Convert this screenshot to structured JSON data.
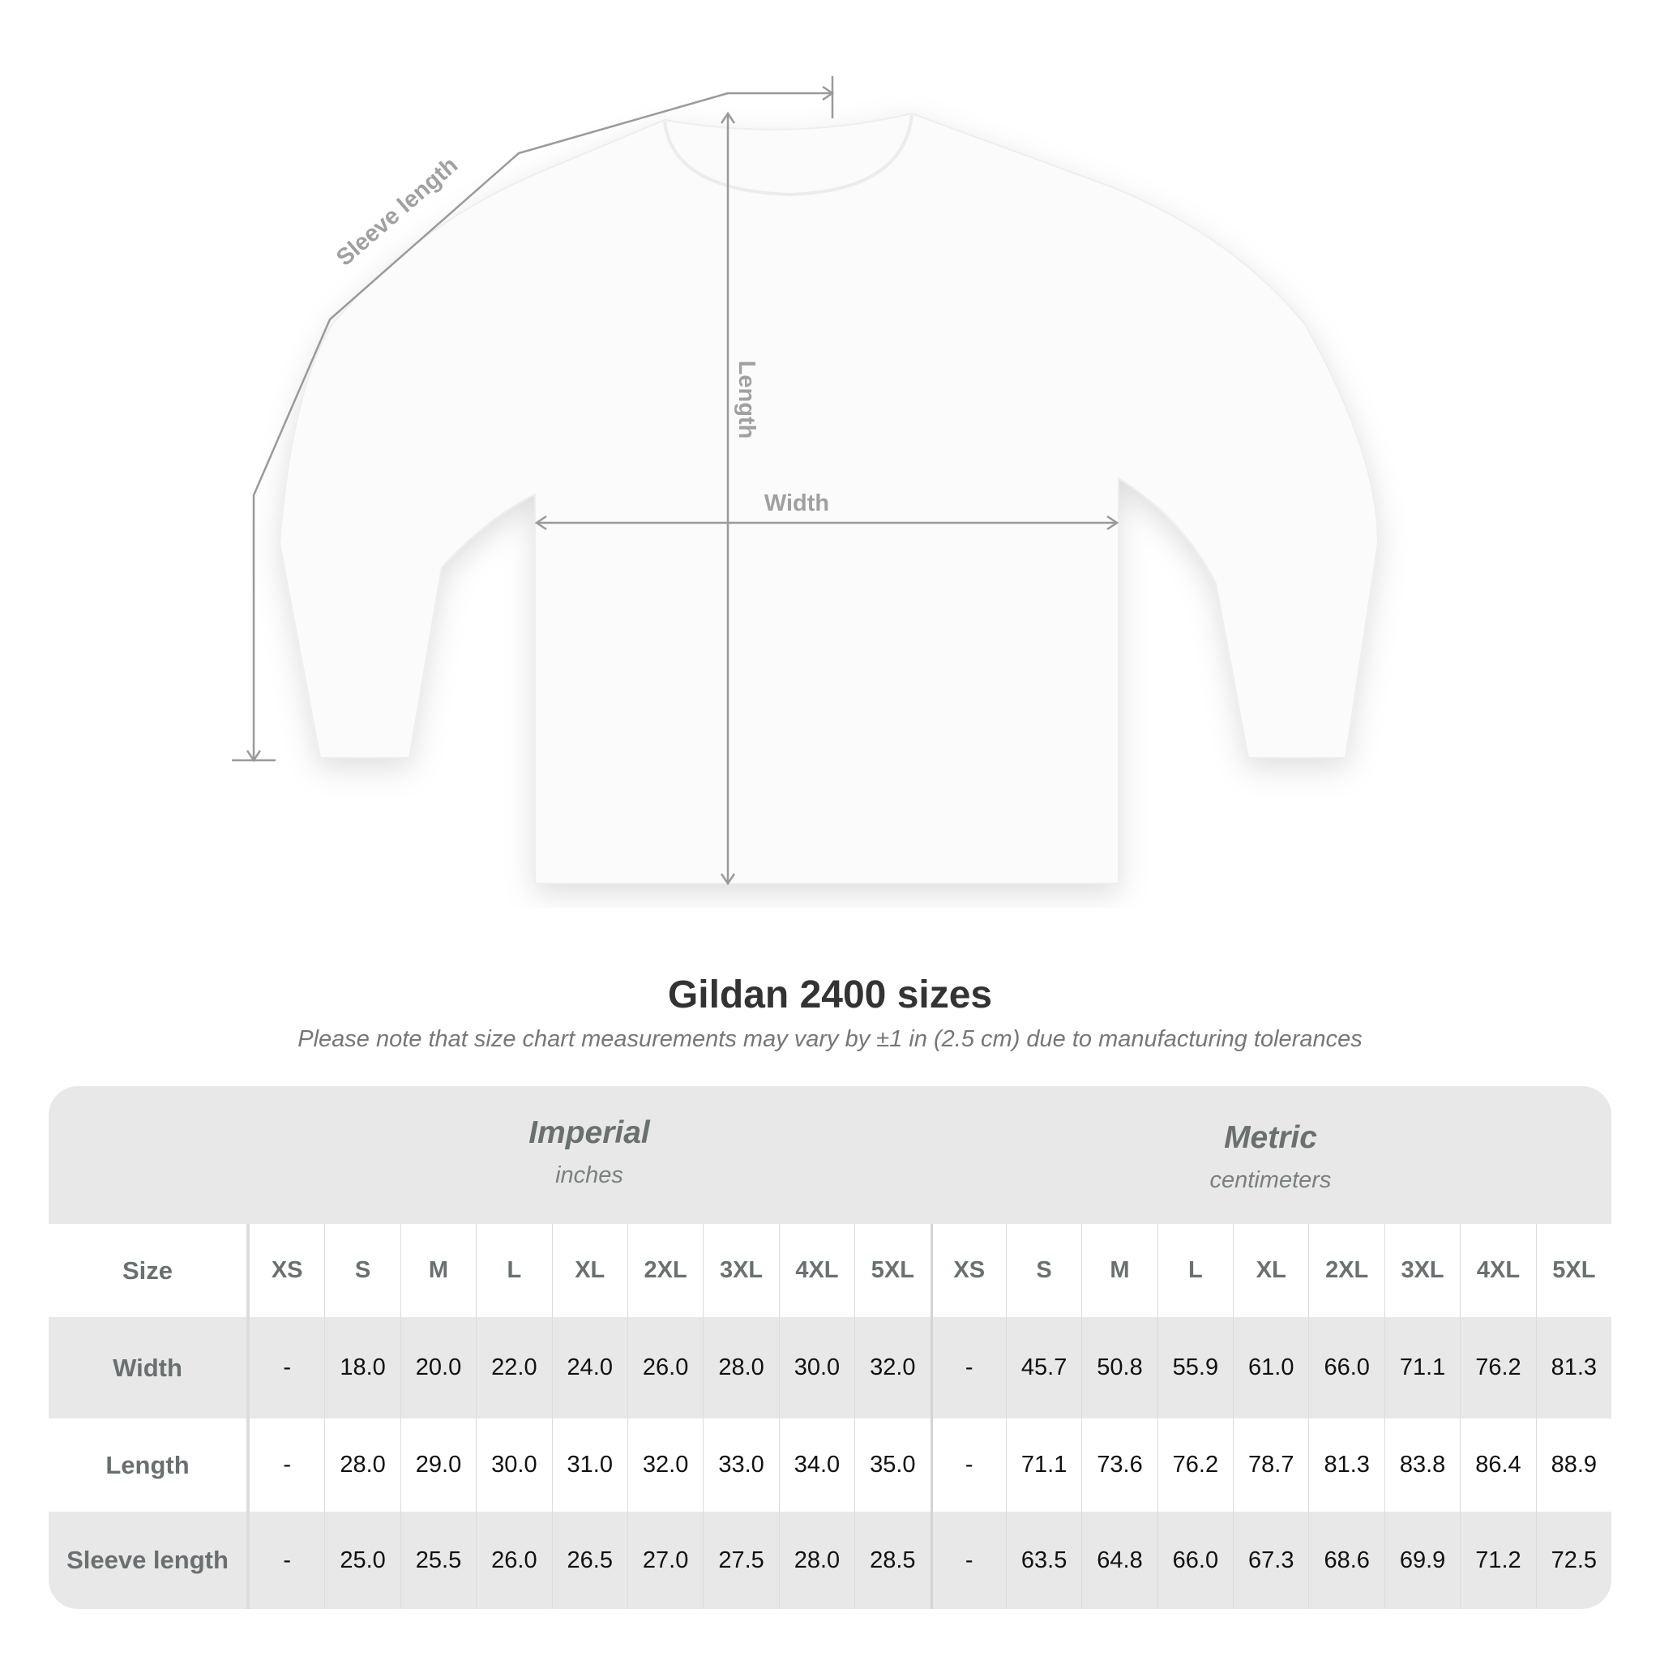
{
  "diagram": {
    "labels": {
      "sleeve": "Sleeve length",
      "length": "Length",
      "width": "Width"
    },
    "colors": {
      "shirt": "#ffffff",
      "measure_line": "#9a9a9a",
      "label": "#a0a0a0"
    }
  },
  "title": "Gildan 2400 sizes",
  "subtitle": "Please note that size chart measurements may vary by ±1 in (2.5 cm) due to manufacturing tolerances",
  "table": {
    "imperial": {
      "name": "Imperial",
      "unit": "inches"
    },
    "metric": {
      "name": "Metric",
      "unit": "centimeters"
    },
    "size_label": "Size",
    "sizes": [
      "XS",
      "S",
      "M",
      "L",
      "XL",
      "2XL",
      "3XL",
      "4XL",
      "5XL"
    ],
    "rows": [
      {
        "label": "Width",
        "imperial": [
          "-",
          "18.0",
          "20.0",
          "22.0",
          "24.0",
          "26.0",
          "28.0",
          "30.0",
          "32.0"
        ],
        "metric": [
          "-",
          "45.7",
          "50.8",
          "55.9",
          "61.0",
          "66.0",
          "71.1",
          "76.2",
          "81.3"
        ]
      },
      {
        "label": "Length",
        "imperial": [
          "-",
          "28.0",
          "29.0",
          "30.0",
          "31.0",
          "32.0",
          "33.0",
          "34.0",
          "35.0"
        ],
        "metric": [
          "-",
          "71.1",
          "73.6",
          "76.2",
          "78.7",
          "81.3",
          "83.8",
          "86.4",
          "88.9"
        ]
      },
      {
        "label": "Sleeve length",
        "imperial": [
          "-",
          "25.0",
          "25.5",
          "26.0",
          "26.5",
          "27.0",
          "27.5",
          "28.0",
          "28.5"
        ],
        "metric": [
          "-",
          "63.5",
          "64.8",
          "66.0",
          "67.3",
          "68.6",
          "69.9",
          "71.2",
          "72.5"
        ]
      }
    ],
    "colors": {
      "shade": "#e8e8e8",
      "header_text": "#6a6f70"
    }
  }
}
